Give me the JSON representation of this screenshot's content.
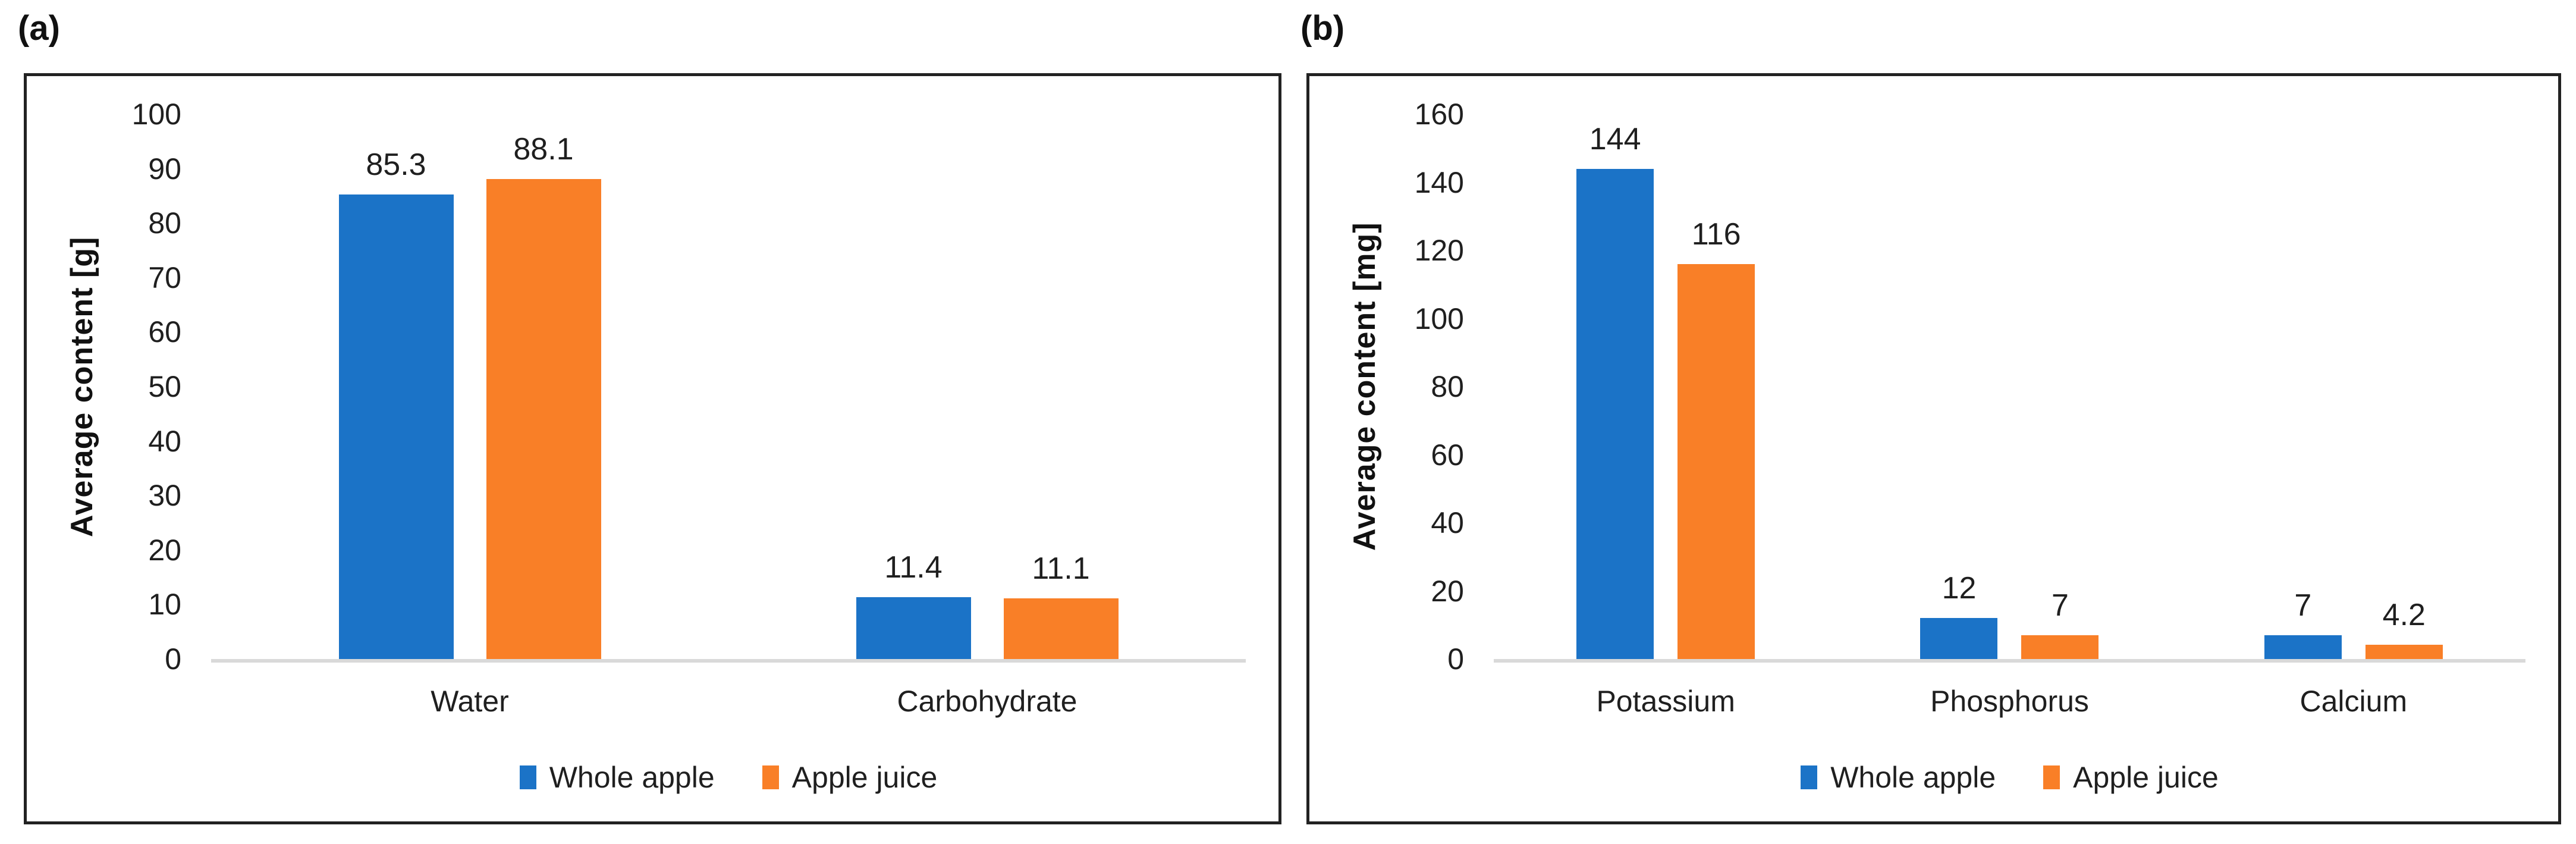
{
  "figure": {
    "background": "#ffffff",
    "panel_border_color": "#222222",
    "axis_line_color": "#d9d9d9",
    "text_color": "#1f1f1f"
  },
  "chart_data": [
    {
      "type": "bar",
      "panel_label": "(a)",
      "title": "",
      "xlabel": "",
      "ylabel": "Average content [g]",
      "ylim": [
        0,
        100
      ],
      "yticks": [
        0,
        10,
        20,
        30,
        40,
        50,
        60,
        70,
        80,
        90,
        100
      ],
      "categories": [
        "Water",
        "Carbohydrate"
      ],
      "series": [
        {
          "name": "Whole apple",
          "color": "#1b73c7",
          "values": [
            85.3,
            11.4
          ]
        },
        {
          "name": "Apple juice",
          "color": "#f97f27",
          "values": [
            88.1,
            11.1
          ]
        }
      ],
      "value_labels": [
        [
          "85.3",
          "11.4"
        ],
        [
          "88.1",
          "11.1"
        ]
      ],
      "gridlines": false,
      "legend_position": "bottom"
    },
    {
      "type": "bar",
      "panel_label": "(b)",
      "title": "",
      "xlabel": "",
      "ylabel": "Average content [mg]",
      "ylim": [
        0,
        160
      ],
      "yticks": [
        0,
        20,
        40,
        60,
        80,
        100,
        120,
        140,
        160
      ],
      "categories": [
        "Potassium",
        "Phosphorus",
        "Calcium"
      ],
      "series": [
        {
          "name": "Whole apple",
          "color": "#1b73c7",
          "values": [
            144,
            12,
            7
          ]
        },
        {
          "name": "Apple juice",
          "color": "#f97f27",
          "values": [
            116,
            7,
            4.2
          ]
        }
      ],
      "value_labels": [
        [
          "144",
          "12",
          "7"
        ],
        [
          "116",
          "7",
          "4.2"
        ]
      ],
      "gridlines": false,
      "legend_position": "bottom"
    }
  ]
}
